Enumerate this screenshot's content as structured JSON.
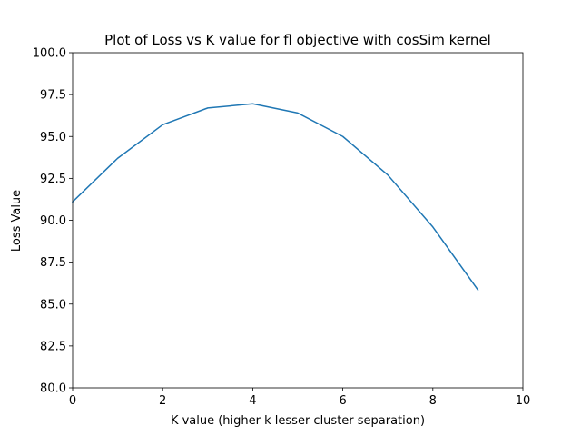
{
  "chart_data": {
    "type": "line",
    "title": "Plot of Loss vs K value for fl objective with cosSim kernel",
    "xlabel": "K value (higher k lesser cluster separation)",
    "ylabel": "Loss Value",
    "xlim": [
      0,
      10
    ],
    "ylim": [
      80,
      100
    ],
    "xticks": [
      0,
      2,
      4,
      6,
      8,
      10
    ],
    "xtick_labels": [
      "0",
      "2",
      "4",
      "6",
      "8",
      "10"
    ],
    "yticks": [
      80,
      82.5,
      85,
      87.5,
      90,
      92.5,
      95,
      97.5,
      100
    ],
    "ytick_labels": [
      "80.0",
      "82.5",
      "85.0",
      "87.5",
      "90.0",
      "92.5",
      "95.0",
      "97.5",
      "100.0"
    ],
    "grid": false,
    "series": [
      {
        "color": "#1f77b4",
        "x": [
          0,
          1,
          2,
          3,
          4,
          5,
          6,
          7,
          8,
          9
        ],
        "y": [
          91.1,
          93.7,
          95.7,
          96.7,
          96.95,
          96.4,
          95.0,
          92.7,
          89.6,
          85.85
        ]
      }
    ]
  }
}
